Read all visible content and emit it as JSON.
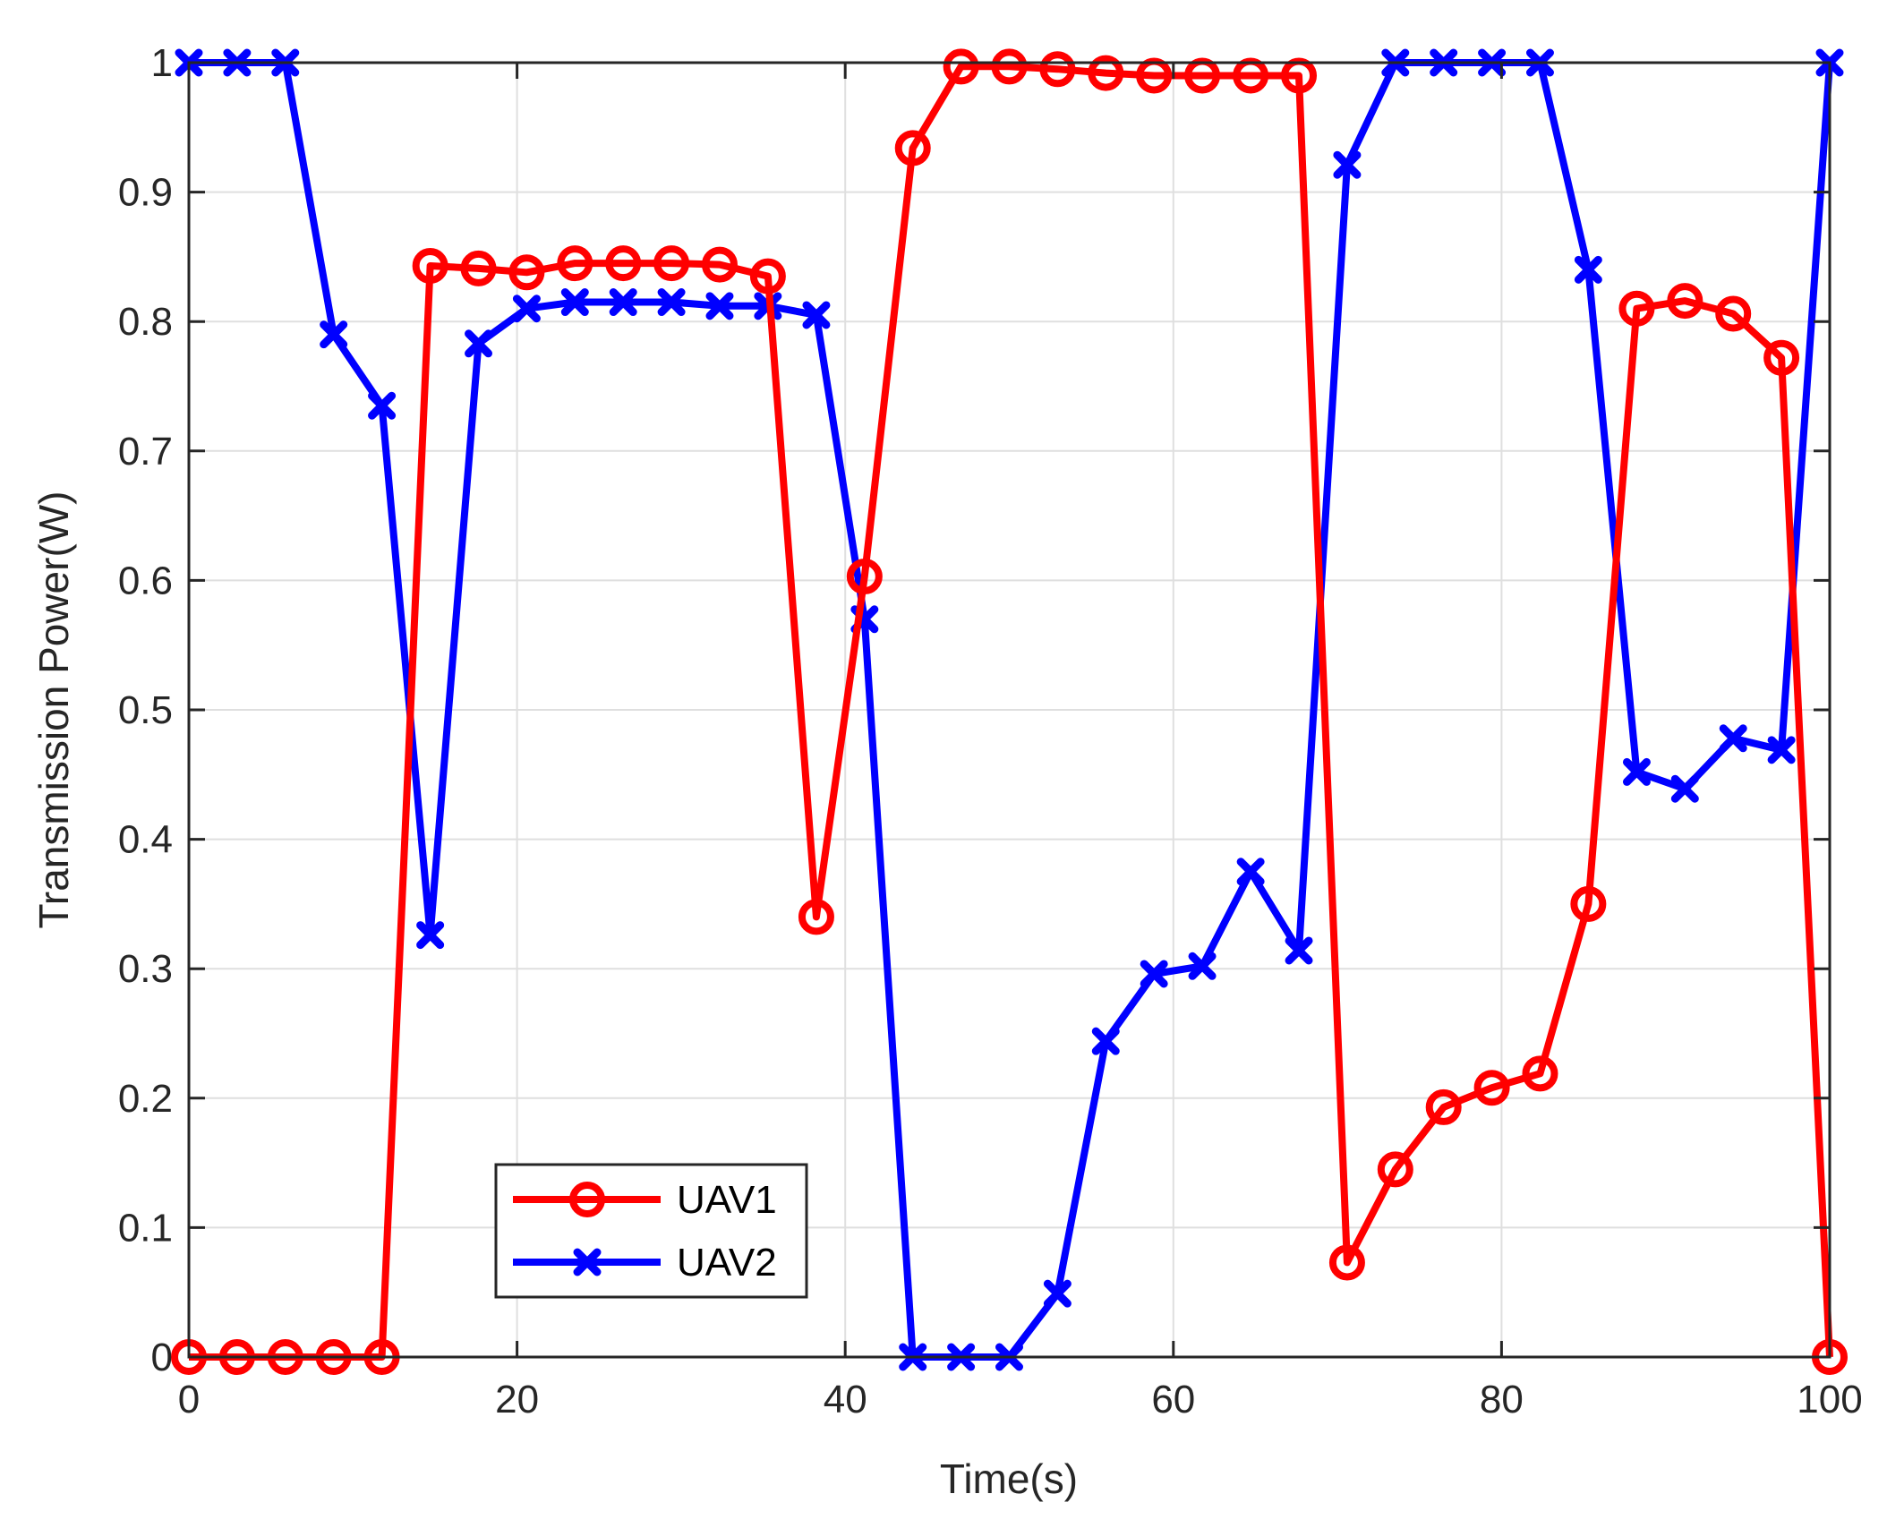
{
  "chart_data": {
    "type": "line",
    "title": "",
    "xlabel": "Time(s)",
    "ylabel": "Transmission Power(W)",
    "xlim": [
      0,
      100
    ],
    "ylim": [
      0,
      1
    ],
    "xticks": [
      0,
      20,
      40,
      60,
      80,
      100
    ],
    "yticks": [
      0,
      0.1,
      0.2,
      0.3,
      0.4,
      0.5,
      0.6,
      0.7,
      0.8,
      0.9,
      1
    ],
    "xtick_labels": [
      "0",
      "20",
      "40",
      "60",
      "80",
      "100"
    ],
    "ytick_labels": [
      "0",
      "0.1",
      "0.2",
      "0.3",
      "0.4",
      "0.5",
      "0.6",
      "0.7",
      "0.8",
      "0.9",
      "1"
    ],
    "grid": true,
    "legend_position": "bottom-left",
    "x": [
      0,
      2.94,
      5.88,
      8.82,
      11.76,
      14.71,
      17.65,
      20.59,
      23.53,
      26.47,
      29.41,
      32.35,
      35.29,
      38.24,
      41.18,
      44.12,
      47.06,
      50,
      52.94,
      55.88,
      58.82,
      61.76,
      64.71,
      67.65,
      70.59,
      73.53,
      76.47,
      79.41,
      82.35,
      85.29,
      88.24,
      91.18,
      94.12,
      97.06,
      100
    ],
    "series": [
      {
        "name": "UAV1",
        "color": "#ff0000",
        "marker": "circle",
        "values": [
          0,
          0,
          0,
          0,
          0,
          0.843,
          0.841,
          0.838,
          0.845,
          0.845,
          0.845,
          0.844,
          0.835,
          0.34,
          0.603,
          0.934,
          0.997,
          0.997,
          0.995,
          0.992,
          0.99,
          0.99,
          0.99,
          0.99,
          0.073,
          0.145,
          0.193,
          0.208,
          0.219,
          0.35,
          0.81,
          0.816,
          0.806,
          0.772,
          0
        ]
      },
      {
        "name": "UAV2",
        "color": "#0000ff",
        "marker": "x",
        "values": [
          1,
          1,
          1,
          0.79,
          0.735,
          0.326,
          0.783,
          0.81,
          0.815,
          0.815,
          0.815,
          0.812,
          0.812,
          0.805,
          0.57,
          0,
          0,
          0,
          0.049,
          0.244,
          0.296,
          0.302,
          0.375,
          0.314,
          0.921,
          1,
          1,
          1,
          1,
          0.84,
          0.452,
          0.439,
          0.478,
          0.469,
          1
        ]
      }
    ]
  }
}
